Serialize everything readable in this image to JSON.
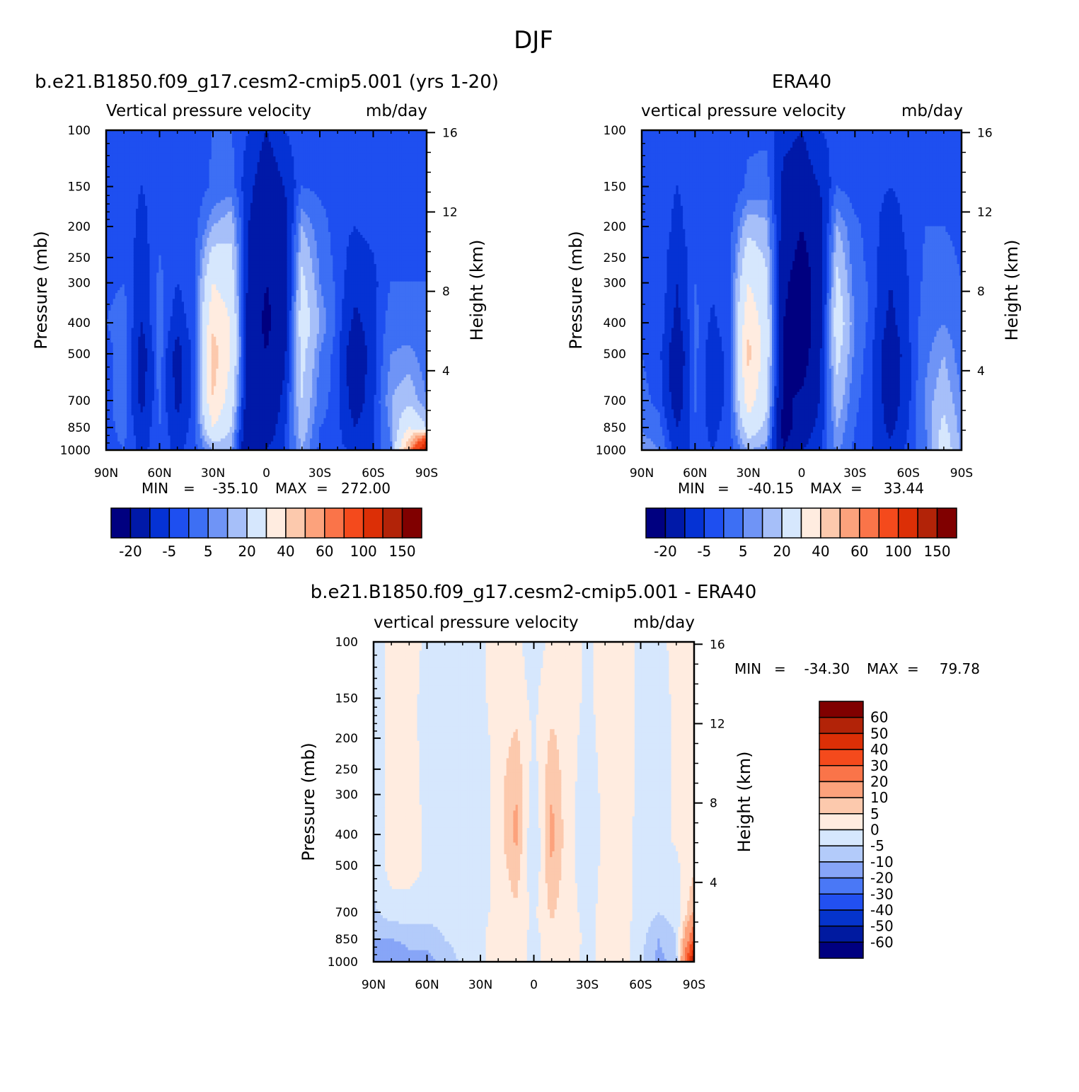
{
  "figure": {
    "title": "DJF"
  },
  "colors": {
    "model_scale": [
      "#000080",
      "#0019a8",
      "#0532d4",
      "#1e4ff0",
      "#3d6ff4",
      "#6f94f6",
      "#a6bff9",
      "#d6e7fd",
      "#ffece0",
      "#fcc9ad",
      "#fca27c",
      "#fa7449",
      "#f44a1c",
      "#dc2f06",
      "#b22308",
      "#800000"
    ],
    "diff_scale": [
      "#000080",
      "#001aa0",
      "#0534cc",
      "#2250f0",
      "#4a78f6",
      "#87a5f7",
      "#b3cbfa",
      "#d6e7fd",
      "#ffece0",
      "#fcc9ad",
      "#fca27c",
      "#fa7449",
      "#f44a1c",
      "#dc2f06",
      "#b22308",
      "#800000"
    ]
  },
  "chart_data": [
    {
      "type": "heatmap",
      "title": "b.e21.B1850.f09_g17.cesm2-cmip5.001 (yrs 1-20)",
      "subtitle_left": "Vertical pressure velocity",
      "subtitle_right": "mb/day",
      "ylabel": "Pressure (mb)",
      "y2label": "Height (km)",
      "x_ticks": [
        "90N",
        "60N",
        "30N",
        "0",
        "30S",
        "60S",
        "90S"
      ],
      "y_ticks": [
        "100",
        "150",
        "200",
        "250",
        "300",
        "400",
        "500",
        "700",
        "850",
        "1000"
      ],
      "y2_ticks": [
        "16",
        "12",
        "8",
        "4"
      ],
      "stats": {
        "min_label": "MIN",
        "min": "-35.10",
        "max_label": "MAX",
        "max": "272.00"
      },
      "colorbar": {
        "orientation": "horizontal",
        "labels": [
          "-20",
          "-5",
          "5",
          "20",
          "40",
          "60",
          "100",
          "150"
        ]
      },
      "colorbar_levels": [
        -25,
        -20,
        -10,
        -5,
        -2,
        2,
        5,
        10,
        20,
        30,
        40,
        50,
        60,
        80,
        100,
        125,
        150
      ],
      "field": {
        "lat": [
          90,
          80,
          70,
          60,
          50,
          40,
          30,
          20,
          10,
          0,
          -10,
          -20,
          -30,
          -40,
          -50,
          -60,
          -70,
          -80,
          -90
        ],
        "p": [
          100,
          150,
          200,
          300,
          400,
          500,
          700,
          850,
          1000
        ],
        "values": [
          [
            -5,
            -5,
            -4,
            -3,
            -2,
            -4,
            -3,
            -3,
            -3
          ],
          [
            -4,
            -4,
            -3,
            -2,
            0,
            1,
            0,
            -1,
            -2
          ],
          [
            -5,
            -5,
            -6,
            -8,
            -10,
            -14,
            -12,
            -8,
            -6
          ],
          [
            -5,
            -4,
            -3,
            -1,
            0,
            0,
            -1,
            -2,
            -3
          ],
          [
            -5,
            -5,
            -5,
            -5,
            -8,
            -13,
            -12,
            -8,
            -6
          ],
          [
            -5,
            -5,
            -3,
            -2,
            -2,
            -3,
            -3,
            -3,
            -3
          ],
          [
            -2,
            -1,
            5,
            20,
            28,
            35,
            30,
            20,
            5
          ],
          [
            -2,
            0,
            8,
            15,
            20,
            20,
            15,
            10,
            5
          ],
          [
            -5,
            -8,
            -10,
            -12,
            -15,
            -14,
            -16,
            -18,
            -20
          ],
          [
            -10,
            -15,
            -18,
            -20,
            -22,
            -20,
            -18,
            -15,
            -10
          ],
          [
            -5,
            -10,
            -14,
            -16,
            -15,
            -12,
            -8,
            -6,
            -5
          ],
          [
            -3,
            -2,
            5,
            12,
            15,
            12,
            10,
            8,
            5
          ],
          [
            -5,
            -3,
            0,
            2,
            5,
            2,
            0,
            -2,
            -3
          ],
          [
            -5,
            -4,
            -4,
            -3,
            -3,
            -4,
            -4,
            -4,
            -4
          ],
          [
            -5,
            -4,
            -5,
            -8,
            -12,
            -16,
            -14,
            -10,
            -6
          ],
          [
            -5,
            -4,
            -4,
            -6,
            -6,
            -7,
            -6,
            -5,
            -5
          ],
          [
            -4,
            -4,
            -3,
            -2,
            0,
            2,
            5,
            3,
            1
          ],
          [
            -5,
            -4,
            -3,
            -2,
            0,
            3,
            8,
            20,
            40
          ],
          [
            -5,
            -5,
            -4,
            -2,
            -1,
            0,
            2,
            10,
            120
          ]
        ]
      }
    },
    {
      "type": "heatmap",
      "title": "ERA40",
      "subtitle_left": "vertical pressure velocity",
      "subtitle_right": "mb/day",
      "ylabel": "Pressure (mb)",
      "y2label": "Height (km)",
      "x_ticks": [
        "90N",
        "60N",
        "30N",
        "0",
        "30S",
        "60S",
        "90S"
      ],
      "y_ticks": [
        "100",
        "150",
        "200",
        "250",
        "300",
        "400",
        "500",
        "700",
        "850",
        "1000"
      ],
      "y2_ticks": [
        "16",
        "12",
        "8",
        "4"
      ],
      "stats": {
        "min_label": "MIN",
        "min": "-40.15",
        "max_label": "MAX",
        "max": "33.44"
      },
      "colorbar": {
        "orientation": "horizontal",
        "labels": [
          "-20",
          "-5",
          "5",
          "20",
          "40",
          "60",
          "100",
          "150"
        ]
      },
      "colorbar_levels": [
        -25,
        -20,
        -10,
        -5,
        -2,
        2,
        5,
        10,
        20,
        30,
        40,
        50,
        60,
        80,
        100,
        125,
        150
      ],
      "field": {
        "lat": [
          90,
          80,
          70,
          60,
          50,
          40,
          30,
          20,
          10,
          0,
          -10,
          -20,
          -30,
          -40,
          -50,
          -60,
          -70,
          -80,
          -90
        ],
        "p": [
          100,
          150,
          200,
          300,
          400,
          500,
          700,
          850,
          1000
        ],
        "values": [
          [
            -5,
            -5,
            -4,
            -3,
            -2,
            -2,
            -1,
            1,
            5
          ],
          [
            -5,
            -4,
            -3,
            -2,
            -2,
            -4,
            -3,
            -1,
            2
          ],
          [
            -5,
            -5,
            -6,
            -10,
            -12,
            -16,
            -14,
            -10,
            -8
          ],
          [
            -5,
            -4,
            -3,
            -2,
            -1,
            -1,
            -1,
            -3,
            -4
          ],
          [
            -5,
            -5,
            -5,
            -4,
            -6,
            -8,
            -8,
            -6,
            -5
          ],
          [
            -5,
            -5,
            -3,
            -2,
            -2,
            -3,
            -3,
            -3,
            -3
          ],
          [
            -3,
            -1,
            8,
            20,
            28,
            33,
            25,
            15,
            5
          ],
          [
            -3,
            0,
            6,
            12,
            15,
            15,
            12,
            8,
            3
          ],
          [
            -8,
            -12,
            -14,
            -18,
            -20,
            -20,
            -22,
            -25,
            -20
          ],
          [
            -10,
            -14,
            -20,
            -25,
            -28,
            -26,
            -18,
            -15,
            -10
          ],
          [
            -5,
            -10,
            -14,
            -16,
            -14,
            -12,
            -10,
            -8,
            -6
          ],
          [
            -4,
            -2,
            5,
            12,
            15,
            12,
            8,
            5,
            3
          ],
          [
            -5,
            -4,
            -1,
            0,
            2,
            1,
            -1,
            -2,
            -3
          ],
          [
            -5,
            -4,
            -4,
            -3,
            -4,
            -5,
            -5,
            -5,
            -5
          ],
          [
            -5,
            -5,
            -7,
            -10,
            -12,
            -16,
            -14,
            -12,
            -8
          ],
          [
            -5,
            -4,
            -4,
            -5,
            -5,
            -6,
            -6,
            -5,
            -4
          ],
          [
            -4,
            -3,
            -2,
            -1,
            0,
            1,
            3,
            2,
            0
          ],
          [
            -5,
            -4,
            -2,
            0,
            2,
            5,
            8,
            12,
            15
          ],
          [
            -5,
            -4,
            -3,
            -2,
            -1,
            0,
            2,
            3,
            4
          ]
        ]
      }
    },
    {
      "type": "heatmap",
      "title": "b.e21.B1850.f09_g17.cesm2-cmip5.001 - ERA40",
      "subtitle_left": "vertical pressure velocity",
      "subtitle_right": "mb/day",
      "ylabel": "Pressure (mb)",
      "y2label": "Height (km)",
      "x_ticks": [
        "90N",
        "60N",
        "30N",
        "0",
        "30S",
        "60S",
        "90S"
      ],
      "y_ticks": [
        "100",
        "150",
        "200",
        "250",
        "300",
        "400",
        "500",
        "700",
        "850",
        "1000"
      ],
      "y2_ticks": [
        "16",
        "12",
        "8",
        "4"
      ],
      "stats": {
        "min_label": "MIN",
        "min": "-34.30",
        "max_label": "MAX",
        "max": "79.78"
      },
      "colorbar": {
        "orientation": "vertical",
        "labels": [
          "60",
          "50",
          "40",
          "30",
          "20",
          "10",
          "5",
          "0",
          "-5",
          "-10",
          "-20",
          "-30",
          "-40",
          "-50",
          "-60"
        ]
      },
      "colorbar_levels": [
        -70,
        -60,
        -50,
        -40,
        -30,
        -20,
        -10,
        -5,
        0,
        5,
        10,
        20,
        30,
        40,
        50,
        60,
        70
      ],
      "field": {
        "lat": [
          90,
          80,
          70,
          60,
          50,
          40,
          30,
          20,
          10,
          0,
          -10,
          -20,
          -30,
          -40,
          -50,
          -60,
          -70,
          -80,
          -90
        ],
        "p": [
          100,
          150,
          200,
          300,
          400,
          500,
          700,
          850,
          1000
        ],
        "values": [
          [
            -2,
            -2,
            -2,
            -2,
            -2,
            -3,
            -6,
            -10,
            -15
          ],
          [
            1,
            1,
            1,
            1,
            1,
            2,
            -2,
            -10,
            -20
          ],
          [
            2,
            2,
            2,
            3,
            3,
            3,
            -3,
            -8,
            -12
          ],
          [
            -1,
            -2,
            -2,
            -2,
            -1,
            -1,
            -3,
            -8,
            -12
          ],
          [
            -1,
            -1,
            -1,
            -1,
            -2,
            -2,
            -3,
            -5,
            -8
          ],
          [
            -2,
            -2,
            -1,
            -1,
            -1,
            -2,
            -2,
            -3,
            -4
          ],
          [
            -1,
            -1,
            -2,
            -3,
            -3,
            -2,
            -2,
            -1,
            -1
          ],
          [
            2,
            2,
            2,
            3,
            2,
            2,
            2,
            3,
            2
          ],
          [
            1,
            2,
            6,
            10,
            12,
            8,
            4,
            3,
            2
          ],
          [
            -2,
            -1,
            -1,
            -3,
            -6,
            -5,
            -1,
            -2,
            -1
          ],
          [
            1,
            3,
            6,
            10,
            12,
            10,
            6,
            3,
            2
          ],
          [
            2,
            2,
            2,
            1,
            1,
            1,
            1,
            2,
            1
          ],
          [
            -1,
            -1,
            -2,
            -2,
            -2,
            -2,
            -1,
            -1,
            -1
          ],
          [
            2,
            2,
            2,
            1,
            1,
            1,
            1,
            1,
            1
          ],
          [
            2,
            2,
            2,
            2,
            1,
            1,
            2,
            2,
            2
          ],
          [
            -1,
            -1,
            -1,
            -1,
            -1,
            -1,
            -2,
            -3,
            -4
          ],
          [
            -2,
            -2,
            -2,
            -2,
            -2,
            -2,
            -5,
            -10,
            -12
          ],
          [
            2,
            1,
            1,
            1,
            1,
            -1,
            -3,
            -5,
            -8
          ],
          [
            1,
            1,
            1,
            2,
            3,
            4,
            10,
            30,
            60
          ]
        ]
      }
    }
  ]
}
